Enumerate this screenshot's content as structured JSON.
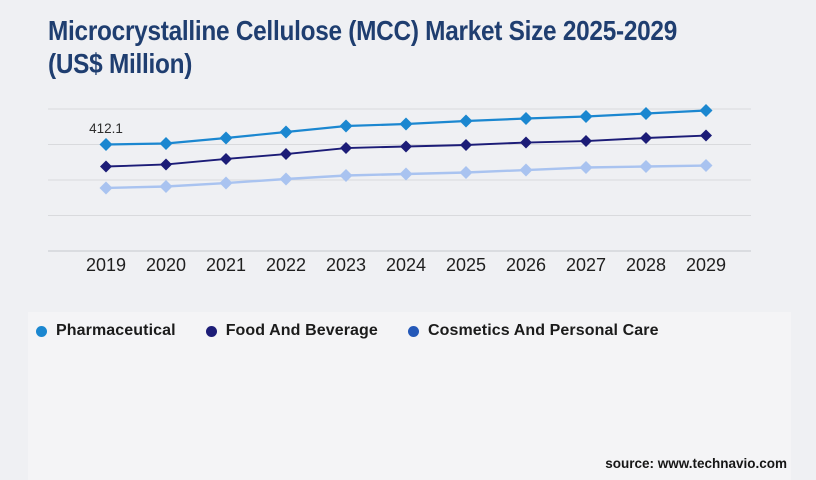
{
  "page": {
    "background_outer": "#eff0f3",
    "background_panel": "#f4f4f6"
  },
  "header": {
    "title": "Microcrystalline Cellulose (MCC) Market Size 2025-2029 (US$ Million)",
    "title_lines": [
      "Microcrystalline Cellulose (MCC) Market Size 2025-2029",
      "(US$ Million)"
    ],
    "title_color": "#1f3e70"
  },
  "chart_data": {
    "type": "line",
    "title": "Microcrystalline Cellulose (MCC) Market Size 2025-2029 (US$ Million)",
    "xlabel": "",
    "ylabel": "",
    "x": [
      2019,
      2020,
      2021,
      2022,
      2023,
      2024,
      2025,
      2026,
      2027,
      2028,
      2029
    ],
    "series": [
      {
        "name": "Pharmaceutical",
        "color": "#1b87d0",
        "marker": "diamond",
        "values": [
          412.1,
          414.9,
          430.4,
          447.3,
          464.2,
          469.8,
          478.3,
          485.3,
          491.0,
          499.4,
          507.9
        ]
      },
      {
        "name": "Food And Beverage",
        "color": "#1c1c77",
        "marker": "diamond",
        "values": [
          350.1,
          355.8,
          371.3,
          385.3,
          402.2,
          406.5,
          410.7,
          417.7,
          421.9,
          430.4,
          437.4
        ]
      },
      {
        "name": "Cosmetics And Personal Care",
        "color": "#a9c3f0",
        "legend_color": "#2458b8",
        "marker": "diamond",
        "values": [
          289.6,
          293.8,
          303.6,
          314.9,
          324.8,
          329.0,
          333.2,
          340.2,
          347.3,
          350.1,
          352.9
        ]
      }
    ],
    "values_estimated_from_pixels": true,
    "data_labels": [
      {
        "series": "Pharmaceutical",
        "x": 2019,
        "text": "412.1"
      }
    ],
    "y_axis_tick_labels_visible": false,
    "ylim": [
      112,
      512
    ],
    "grid": true,
    "grid_step": 100,
    "legend_position": "bottom"
  },
  "footer": {
    "source_label": "source: www.technavio.com"
  }
}
